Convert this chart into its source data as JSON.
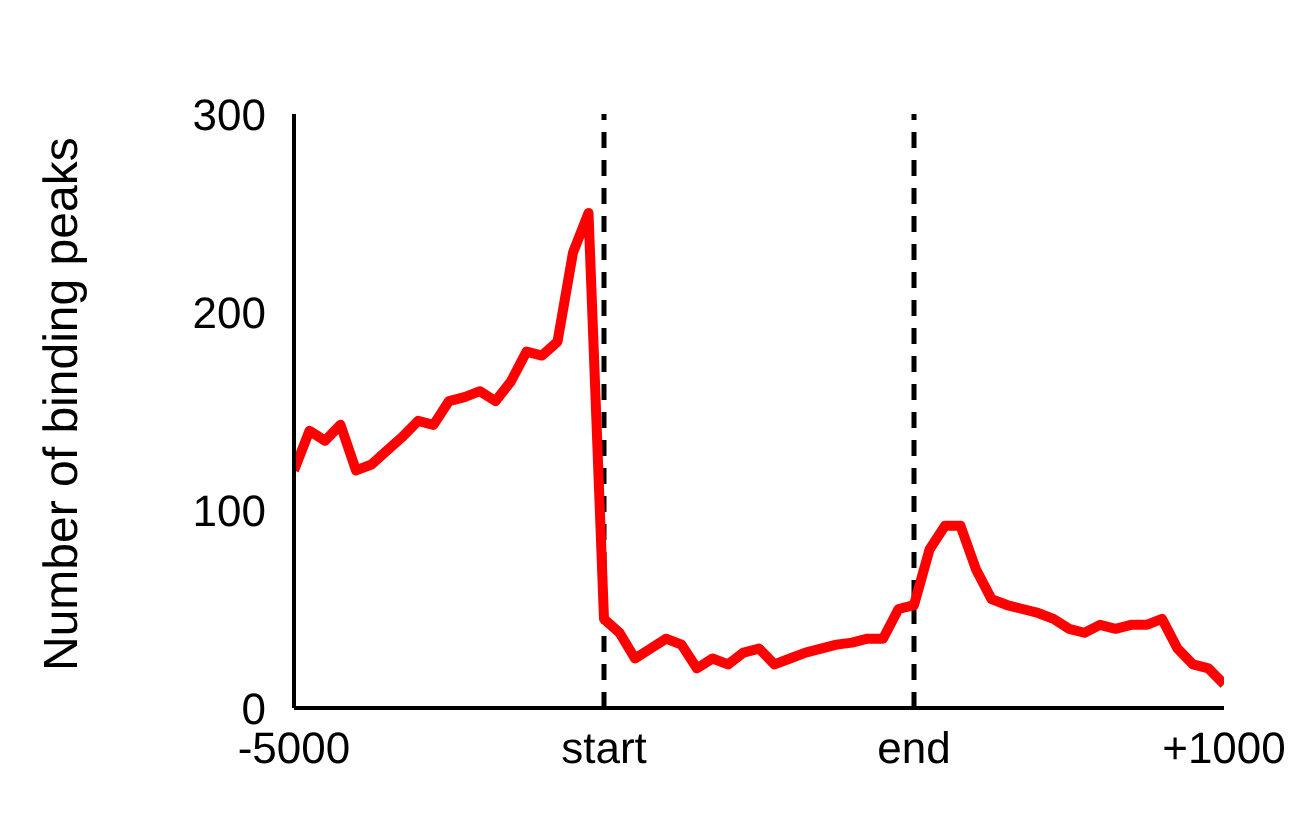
{
  "chart_data": {
    "type": "line",
    "ylabel": "Number of binding peaks",
    "categories": [
      "-5000",
      null,
      null,
      null,
      null,
      null,
      null,
      null,
      null,
      null,
      null,
      null,
      null,
      null,
      null,
      null,
      null,
      null,
      null,
      null,
      "start",
      null,
      null,
      null,
      null,
      null,
      null,
      null,
      null,
      null,
      null,
      null,
      null,
      null,
      null,
      null,
      null,
      null,
      null,
      null,
      "end",
      null,
      null,
      null,
      null,
      null,
      null,
      null,
      null,
      null,
      null,
      null,
      null,
      null,
      null,
      null,
      null,
      null,
      null,
      null,
      "+1000"
    ],
    "series": [
      {
        "color": "#ff0000",
        "values": [
          120,
          140,
          135,
          143,
          120,
          123,
          130,
          137,
          145,
          143,
          155,
          157,
          160,
          155,
          165,
          180,
          178,
          185,
          230,
          250,
          45,
          38,
          25,
          30,
          35,
          32,
          20,
          25,
          22,
          28,
          30,
          22,
          25,
          28,
          30,
          32,
          33,
          35,
          35,
          50,
          52,
          80,
          92,
          92,
          70,
          55,
          52,
          50,
          48,
          45,
          40,
          38,
          42,
          40,
          42,
          42,
          45,
          30,
          22,
          20,
          12
        ]
      }
    ],
    "ylim": [
      0,
      300
    ],
    "yticks": [
      0,
      100,
      200,
      300
    ],
    "grid": false,
    "legend": false,
    "marker": "none",
    "line_style": "solid",
    "ref_lines": [
      {
        "axis": "x",
        "value": "start",
        "color": "#000000",
        "line_style": "dashed"
      },
      {
        "axis": "x",
        "value": "end",
        "color": "#000000",
        "line_style": "dashed"
      }
    ]
  }
}
